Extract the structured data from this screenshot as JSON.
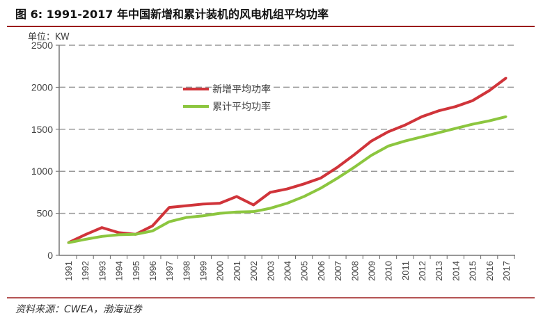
{
  "header": {
    "title": "图 6:  1991-2017 年中国新增和累计装机的风电机组平均功率"
  },
  "footer": {
    "source": "资料来源：CWEA，渤海证券"
  },
  "chart_data": {
    "type": "line",
    "title": "图 6:  1991-2017 年中国新增和累计装机的风电机组平均功率",
    "unit_label": "单位：KW",
    "xlabel": "",
    "ylabel": "",
    "ylim": [
      0,
      2500
    ],
    "yticks": [
      0,
      500,
      1000,
      1500,
      2000,
      2500
    ],
    "grid": true,
    "legend_position": "top-left",
    "x": [
      "1991",
      "1992",
      "1993",
      "1994",
      "1995",
      "1996",
      "1997",
      "1998",
      "1999",
      "2000",
      "2001",
      "2002",
      "2003",
      "2004",
      "2005",
      "2006",
      "2007",
      "2008",
      "2009",
      "2010",
      "2011",
      "2012",
      "2013",
      "2014",
      "2015",
      "2016",
      "2017"
    ],
    "series": [
      {
        "name": "新增平均功率",
        "color": "#d0343a",
        "values": [
          150,
          245,
          330,
          270,
          250,
          350,
          570,
          590,
          610,
          620,
          700,
          600,
          750,
          790,
          850,
          920,
          1050,
          1200,
          1360,
          1470,
          1550,
          1650,
          1720,
          1770,
          1840,
          1960,
          2110
        ]
      },
      {
        "name": "累计平均功率",
        "color": "#8cc63f",
        "values": [
          150,
          190,
          225,
          245,
          250,
          290,
          400,
          450,
          470,
          500,
          515,
          520,
          560,
          620,
          700,
          800,
          920,
          1050,
          1190,
          1300,
          1360,
          1410,
          1460,
          1510,
          1560,
          1600,
          1650
        ]
      }
    ]
  }
}
